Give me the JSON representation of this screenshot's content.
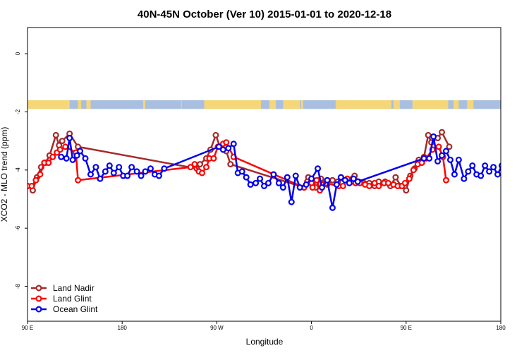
{
  "chart_data": {
    "type": "line",
    "title": "40N-45N October (Ver 10)   2015-01-01 to 2020-12-18",
    "xlabel": "Longitude",
    "ylabel": "XCO2 - MLO trend (ppm)",
    "xlim": [
      90,
      540
    ],
    "ylim": [
      -9.2,
      0.9
    ],
    "x_ticks": [
      {
        "value": 90,
        "label": "90 E"
      },
      {
        "value": 180,
        "label": "180"
      },
      {
        "value": 270,
        "label": "90 W"
      },
      {
        "value": 360,
        "label": "0"
      },
      {
        "value": 450,
        "label": "90 E"
      },
      {
        "value": 540,
        "label": "180"
      }
    ],
    "y_ticks": [
      {
        "value": 0,
        "label": "0"
      },
      {
        "value": -2,
        "label": "-2"
      },
      {
        "value": -4,
        "label": "-4"
      },
      {
        "value": -6,
        "label": "-6"
      },
      {
        "value": -8,
        "label": "-8"
      }
    ],
    "landmask_band": {
      "y_range": [
        -1.9,
        -1.6
      ],
      "land_color": "#f5d77a",
      "ocean_color": "#a9bfe0",
      "land_segments": [
        [
          90,
          130
        ],
        [
          138,
          141
        ],
        [
          146,
          150
        ],
        [
          200,
          202
        ],
        [
          236,
          236.6
        ],
        [
          258,
          312
        ],
        [
          320,
          326
        ],
        [
          333,
          349
        ],
        [
          350,
          352
        ],
        [
          383,
          436
        ],
        [
          438,
          444
        ],
        [
          456,
          490
        ],
        [
          495,
          500
        ],
        [
          508,
          514
        ]
      ]
    },
    "legend": {
      "position": "bottom-left"
    },
    "grid": false,
    "series": [
      {
        "name": "Land Nadir",
        "color": "#a52a2a",
        "points": [
          [
            90,
            -4.55
          ],
          [
            95,
            -4.7
          ],
          [
            99,
            -4.25
          ],
          [
            103,
            -3.9
          ],
          [
            107,
            -3.75
          ],
          [
            111,
            -3.5
          ],
          [
            117,
            -2.8
          ],
          [
            120,
            -3.15
          ],
          [
            123,
            -3.0
          ],
          [
            130,
            -2.75
          ],
          [
            138,
            -3.2
          ],
          [
            251,
            -3.95
          ],
          [
            254,
            -3.8
          ],
          [
            260,
            -3.6
          ],
          [
            264,
            -3.3
          ],
          [
            269,
            -2.8
          ],
          [
            273,
            -3.2
          ],
          [
            279,
            -3.35
          ],
          [
            283,
            -3.8
          ],
          [
            353,
            -4.6
          ],
          [
            357,
            -4.25
          ],
          [
            360,
            -4.45
          ],
          [
            364,
            -4.6
          ],
          [
            369,
            -4.3
          ],
          [
            375,
            -4.5
          ],
          [
            380,
            -4.35
          ],
          [
            385,
            -4.4
          ],
          [
            401,
            -4.2
          ],
          [
            405,
            -4.4
          ],
          [
            410,
            -4.45
          ],
          [
            415,
            -4.45
          ],
          [
            420,
            -4.55
          ],
          [
            424,
            -4.4
          ],
          [
            430,
            -4.4
          ],
          [
            435,
            -4.55
          ],
          [
            440,
            -4.25
          ],
          [
            445,
            -4.55
          ],
          [
            450,
            -4.7
          ],
          [
            454,
            -4.2
          ],
          [
            458,
            -3.95
          ],
          [
            462,
            -3.65
          ],
          [
            467,
            -3.55
          ],
          [
            471,
            -2.8
          ],
          [
            474,
            -3.05
          ],
          [
            480,
            -2.9
          ],
          [
            484,
            -2.7
          ],
          [
            491,
            -3.2
          ]
        ]
      },
      {
        "name": "Land Glint",
        "color": "#ff0000",
        "points": [
          [
            90,
            -4.55
          ],
          [
            94,
            -4.55
          ],
          [
            98,
            -4.35
          ],
          [
            102,
            -4.15
          ],
          [
            106,
            -3.75
          ],
          [
            110,
            -3.75
          ],
          [
            114,
            -3.55
          ],
          [
            118,
            -3.4
          ],
          [
            121,
            -3.3
          ],
          [
            126,
            -3.2
          ],
          [
            136,
            -3.4
          ],
          [
            138,
            -4.35
          ],
          [
            245,
            -3.9
          ],
          [
            249,
            -3.8
          ],
          [
            253,
            -4.05
          ],
          [
            256,
            -4.1
          ],
          [
            260,
            -3.9
          ],
          [
            263,
            -3.6
          ],
          [
            267,
            -3.6
          ],
          [
            271,
            -3.2
          ],
          [
            276,
            -3.1
          ],
          [
            279,
            -3.05
          ],
          [
            286,
            -3.55
          ],
          [
            353,
            -4.6
          ],
          [
            356,
            -4.4
          ],
          [
            361,
            -4.6
          ],
          [
            365,
            -4.35
          ],
          [
            368,
            -4.7
          ],
          [
            371,
            -4.5
          ],
          [
            374,
            -4.45
          ],
          [
            386,
            -4.55
          ],
          [
            390,
            -4.55
          ],
          [
            394,
            -4.3
          ],
          [
            398,
            -4.4
          ],
          [
            402,
            -4.45
          ],
          [
            406,
            -4.45
          ],
          [
            411,
            -4.5
          ],
          [
            415,
            -4.55
          ],
          [
            420,
            -4.45
          ],
          [
            424,
            -4.55
          ],
          [
            429,
            -4.45
          ],
          [
            433,
            -4.45
          ],
          [
            438,
            -4.5
          ],
          [
            442,
            -4.55
          ],
          [
            446,
            -4.55
          ],
          [
            449,
            -4.45
          ],
          [
            453,
            -4.3
          ],
          [
            457,
            -4.0
          ],
          [
            461,
            -3.8
          ],
          [
            465,
            -3.75
          ],
          [
            469,
            -3.6
          ],
          [
            475,
            -3.3
          ],
          [
            481,
            -3.2
          ],
          [
            485,
            -3.55
          ],
          [
            488,
            -4.35
          ]
        ]
      },
      {
        "name": "Ocean Glint",
        "color": "#0000ee",
        "points": [
          [
            122,
            -3.55
          ],
          [
            127,
            -3.6
          ],
          [
            130,
            -2.9
          ],
          [
            133,
            -3.65
          ],
          [
            137,
            -3.5
          ],
          [
            140,
            -3.35
          ],
          [
            145,
            -3.6
          ],
          [
            150,
            -4.15
          ],
          [
            155,
            -3.9
          ],
          [
            159,
            -4.3
          ],
          [
            164,
            -4.05
          ],
          [
            168,
            -3.85
          ],
          [
            172,
            -4.1
          ],
          [
            177,
            -3.9
          ],
          [
            181,
            -4.2
          ],
          [
            185,
            -4.2
          ],
          [
            189,
            -3.9
          ],
          [
            194,
            -4.05
          ],
          [
            198,
            -4.2
          ],
          [
            202,
            -4.05
          ],
          [
            207,
            -3.95
          ],
          [
            211,
            -4.15
          ],
          [
            215,
            -4.2
          ],
          [
            220,
            -3.95
          ],
          [
            272,
            -3.2
          ],
          [
            276,
            -3.3
          ],
          [
            281,
            -3.25
          ],
          [
            286,
            -3.1
          ],
          [
            290,
            -4.1
          ],
          [
            294,
            -4.05
          ],
          [
            298,
            -4.25
          ],
          [
            302,
            -4.5
          ],
          [
            307,
            -4.45
          ],
          [
            311,
            -4.3
          ],
          [
            315,
            -4.55
          ],
          [
            319,
            -4.45
          ],
          [
            324,
            -4.15
          ],
          [
            329,
            -4.45
          ],
          [
            333,
            -4.6
          ],
          [
            337,
            -4.25
          ],
          [
            341,
            -5.1
          ],
          [
            345,
            -4.2
          ],
          [
            349,
            -4.6
          ],
          [
            355,
            -4.5
          ],
          [
            360,
            -4.3
          ],
          [
            366,
            -3.95
          ],
          [
            370,
            -4.6
          ],
          [
            375,
            -4.35
          ],
          [
            380,
            -5.3
          ],
          [
            384,
            -4.5
          ],
          [
            388,
            -4.25
          ],
          [
            392,
            -4.35
          ],
          [
            396,
            -4.45
          ],
          [
            400,
            -4.3
          ],
          [
            404,
            -4.4
          ],
          [
            467,
            -3.6
          ],
          [
            472,
            -3.6
          ],
          [
            476,
            -2.85
          ],
          [
            480,
            -3.7
          ],
          [
            484,
            -3.5
          ],
          [
            488,
            -3.35
          ],
          [
            492,
            -3.65
          ],
          [
            496,
            -4.15
          ],
          [
            500,
            -3.65
          ],
          [
            505,
            -4.3
          ],
          [
            509,
            -4.05
          ],
          [
            513,
            -3.85
          ],
          [
            517,
            -4.15
          ],
          [
            521,
            -4.2
          ],
          [
            525,
            -3.85
          ],
          [
            529,
            -4.05
          ],
          [
            533,
            -3.9
          ],
          [
            537,
            -4.15
          ],
          [
            541,
            -3.85
          ],
          [
            546,
            -4.3
          ],
          [
            550,
            -4.05
          ],
          [
            554,
            -3.9
          ]
        ]
      }
    ]
  }
}
